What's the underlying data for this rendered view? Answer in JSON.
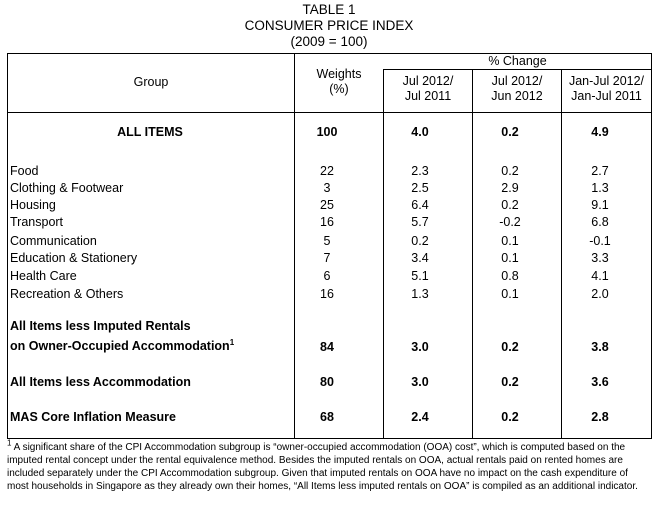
{
  "title": {
    "line1": "TABLE 1",
    "line2": "CONSUMER PRICE INDEX",
    "line3": "(2009 = 100)"
  },
  "header": {
    "group": "Group",
    "weights_line1": "Weights",
    "weights_line2": "(%)",
    "pct_change": "% Change",
    "col_a_line1": "Jul 2012/",
    "col_a_line2": "Jul 2011",
    "col_b_line1": "Jul 2012/",
    "col_b_line2": "Jun 2012",
    "col_c_line1": "Jan-Jul 2012/",
    "col_c_line2": "Jan-Jul 2011"
  },
  "all_items": {
    "label": "ALL ITEMS",
    "weight": "100",
    "a": "4.0",
    "b": "0.2",
    "c": "4.9"
  },
  "groups": [
    {
      "label": "Food",
      "weight": "22",
      "a": "2.3",
      "b": "0.2",
      "c": "2.7"
    },
    {
      "label": "Clothing & Footwear",
      "weight": "3",
      "a": "2.5",
      "b": "2.9",
      "c": "1.3"
    },
    {
      "label": "Housing",
      "weight": "25",
      "a": "6.4",
      "b": "0.2",
      "c": "9.1"
    },
    {
      "label": "Transport",
      "weight": "16",
      "a": "5.7",
      "b": "-0.2",
      "c": "6.8"
    },
    {
      "label": "Communication",
      "weight": "5",
      "a": "0.2",
      "b": "0.1",
      "c": "-0.1"
    },
    {
      "label": "Education & Stationery",
      "weight": "7",
      "a": "3.4",
      "b": "0.1",
      "c": "3.3"
    },
    {
      "label": "Health Care",
      "weight": "6",
      "a": "5.1",
      "b": "0.8",
      "c": "4.1"
    },
    {
      "label": "Recreation & Others",
      "weight": "16",
      "a": "1.3",
      "b": "0.1",
      "c": "2.0"
    }
  ],
  "imputed": {
    "label_line1": "All Items less Imputed Rentals",
    "label_line2": "on Owner-Occupied Accommodation",
    "footnote_mark": "1",
    "weight": "84",
    "a": "3.0",
    "b": "0.2",
    "c": "3.8"
  },
  "less_accommodation": {
    "label": "All Items less Accommodation",
    "weight": "80",
    "a": "3.0",
    "b": "0.2",
    "c": "3.6"
  },
  "mas_core": {
    "label": "MAS Core Inflation Measure",
    "weight": "68",
    "a": "2.4",
    "b": "0.2",
    "c": "2.8"
  },
  "footnote": {
    "mark": "1",
    "text": " A significant share of the CPI Accommodation subgroup is “owner-occupied accommodation (OOA) cost”, which is computed based on the imputed rental concept under the rental equivalence method. Besides the imputed rentals on OOA, actual rentals paid on rented homes are included separately under the CPI Accommodation subgroup. Given that imputed rentals on OOA have no impact on the cash expenditure of most households in Singapore as they already own their homes, “All Items less imputed rentals on OOA” is compiled as an additional indicator."
  }
}
